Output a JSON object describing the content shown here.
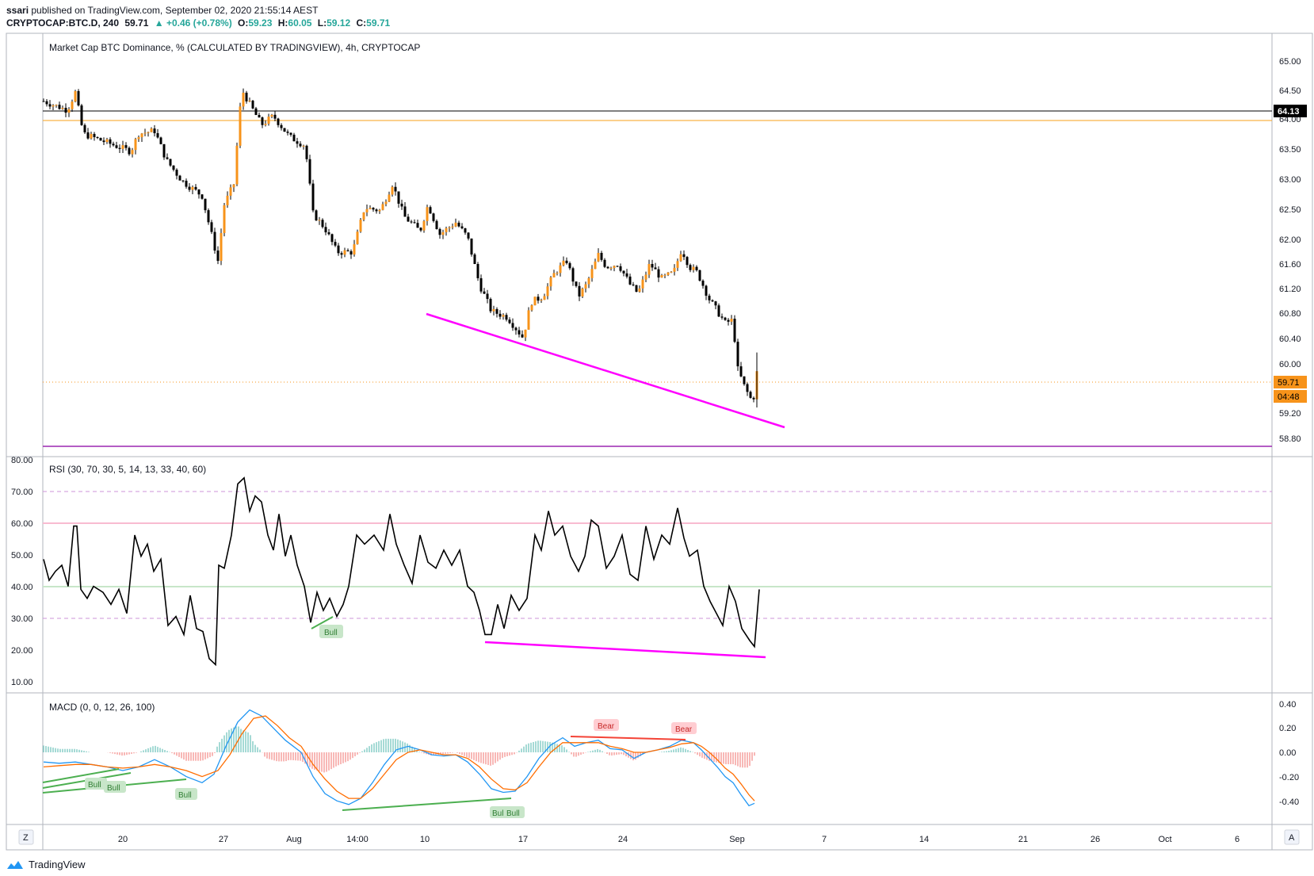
{
  "header": {
    "publisher_user": "ssari",
    "publisher_suffix": "published on TradingView.com, September 02, 2020 21:55:14 AEST"
  },
  "symbol_bar": {
    "symbol": "CRYPTOCAP:BTC.D, 240",
    "last": "59.71",
    "change": "▲ +0.46 (+0.78%)",
    "open_label": "O:",
    "open": "59.23",
    "high_label": "H:",
    "high": "60.05",
    "low_label": "L:",
    "low": "59.12",
    "close_label": "C:",
    "close": "59.71"
  },
  "main_pane": {
    "legend": "Market Cap BTC Dominance, % (CALCULATED BY TRADINGVIEW), 4h, CRYPTOCAP",
    "price_labels": [
      "65.00",
      "64.50",
      "64.00",
      "63.50",
      "63.00",
      "62.50",
      "62.00",
      "61.60",
      "61.20",
      "60.80",
      "60.40",
      "60.00",
      "59.20",
      "58.80"
    ],
    "line_badge": "64.13",
    "last_badge": "59.71",
    "countdown_badge": "04:48"
  },
  "rsi_pane": {
    "legend": "RSI (30, 70, 30, 5, 14, 13, 33, 40, 60)",
    "scale_labels": [
      "80.00",
      "70.00",
      "60.00",
      "50.00",
      "40.00",
      "30.00",
      "20.00",
      "10.00"
    ],
    "divergence_label": "Bull"
  },
  "macd_pane": {
    "legend": "MACD (0, 0, 12, 26, 100)",
    "scale_labels": [
      "0.40",
      "0.20",
      "0.00",
      "-0.20",
      "-0.40"
    ],
    "bull_labels": [
      "Bull",
      "Bull",
      "Bull",
      "Bull",
      "Bull"
    ],
    "bear_labels": [
      "Bear",
      "Bear"
    ]
  },
  "time_axis": {
    "labels": [
      "20",
      "27",
      "Aug",
      "14:00",
      "10",
      "17",
      "24",
      "Sep",
      "7",
      "14",
      "21",
      "26",
      "Oct",
      "6"
    ]
  },
  "toolbar": {
    "zoom_icon_label": "Z",
    "scale_icon_label": "A"
  },
  "footer": {
    "brand": "TradingView"
  },
  "colors": {
    "bull_candle": "#f7931a",
    "bear_candle": "#000000",
    "trend_line": "#ff00ff",
    "rsi_line": "#000000",
    "macd_line": "#2196f3",
    "signal_line": "#ff6d00",
    "bull_div": "#4caf50",
    "bear_div": "#f44336"
  },
  "chart_data": {
    "type": "candlestick",
    "title": "Market Cap BTC Dominance, % (CALCULATED BY TRADINGVIEW), 4h, CRYPTOCAP",
    "ylim": [
      58.6,
      65.2
    ],
    "approx_close_path": [
      [
        "Jul 13",
        64.3
      ],
      [
        "Jul 16",
        64.1
      ],
      [
        "Jul 17",
        63.8
      ],
      [
        "Jul 20",
        63.6
      ],
      [
        "Jul 22",
        63.4
      ],
      [
        "Jul 25",
        62.9
      ],
      [
        "Jul 26",
        61.6
      ],
      [
        "Jul 27",
        62.7
      ],
      [
        "Jul 28",
        64.5
      ],
      [
        "Jul 30",
        64.1
      ],
      [
        "Aug 1",
        63.8
      ],
      [
        "Aug 3",
        62.2
      ],
      [
        "Aug 5",
        61.7
      ],
      [
        "Aug 7",
        62.5
      ],
      [
        "Aug 9",
        62.6
      ],
      [
        "Aug 11",
        62.2
      ],
      [
        "Aug 13",
        61.9
      ],
      [
        "Aug 15",
        60.8
      ],
      [
        "Aug 17",
        60.3
      ],
      [
        "Aug 18",
        61.3
      ],
      [
        "Aug 20",
        61.5
      ],
      [
        "Aug 22",
        61.6
      ],
      [
        "Aug 24",
        61.4
      ],
      [
        "Aug 26",
        61.4
      ],
      [
        "Aug 28",
        61.6
      ],
      [
        "Aug 30",
        61.0
      ],
      [
        "Aug 31",
        60.6
      ],
      [
        "Sep 1",
        59.5
      ],
      [
        "Sep 2",
        59.71
      ]
    ],
    "horizontal_levels": [
      64.13,
      64.0,
      58.8
    ],
    "last_price": 59.71
  }
}
